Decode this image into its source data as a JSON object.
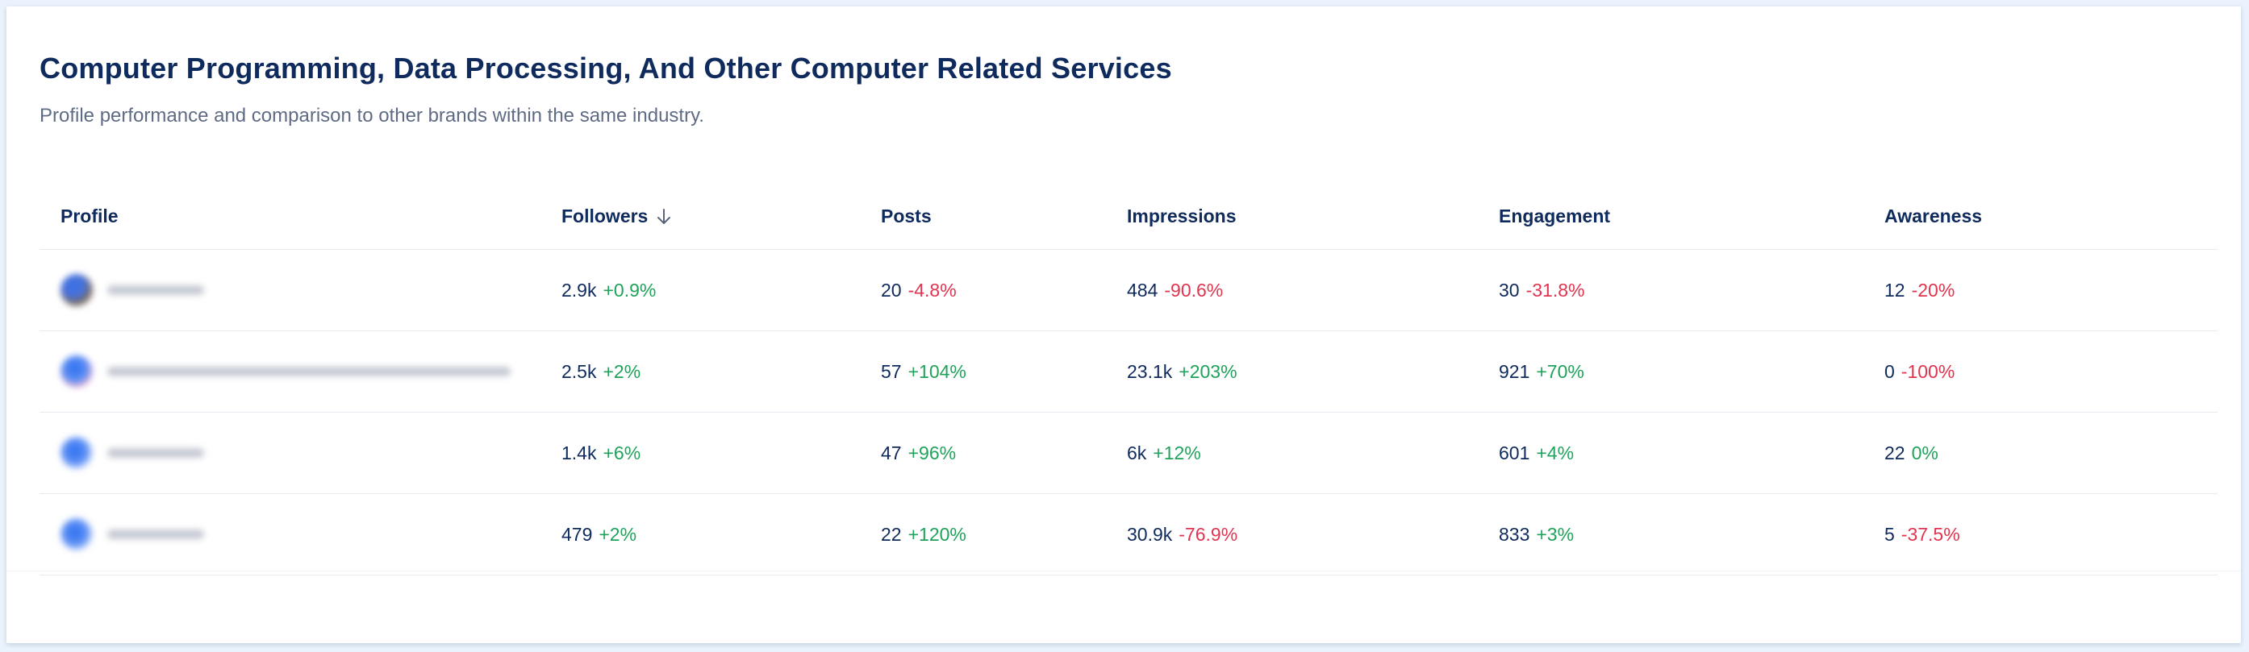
{
  "page": {
    "title": "Computer Programming, Data Processing, And Other Computer Related Services",
    "subtitle": "Profile performance and comparison to other brands within the same industry."
  },
  "colors": {
    "positive": "#1fa35b",
    "negative": "#e0344f",
    "heading": "#0f2a5c"
  },
  "table": {
    "columns": [
      "Profile",
      "Followers",
      "Posts",
      "Impressions",
      "Engagement",
      "Awareness"
    ],
    "sorted_column_icon": "arrow-down-icon",
    "rows": [
      {
        "followers": {
          "value": "2.9k",
          "change": "+0.9%"
        },
        "posts": {
          "value": "20",
          "change": "-4.8%"
        },
        "impressions": {
          "value": "484",
          "change": "-90.6%"
        },
        "engagement": {
          "value": "30",
          "change": "-31.8%"
        },
        "awareness": {
          "value": "12",
          "change": "-20%"
        }
      },
      {
        "followers": {
          "value": "2.5k",
          "change": "+2%"
        },
        "posts": {
          "value": "57",
          "change": "+104%"
        },
        "impressions": {
          "value": "23.1k",
          "change": "+203%"
        },
        "engagement": {
          "value": "921",
          "change": "+70%"
        },
        "awareness": {
          "value": "0",
          "change": "-100%"
        }
      },
      {
        "followers": {
          "value": "1.4k",
          "change": "+6%"
        },
        "posts": {
          "value": "47",
          "change": "+96%"
        },
        "impressions": {
          "value": "6k",
          "change": "+12%"
        },
        "engagement": {
          "value": "601",
          "change": "+4%"
        },
        "awareness": {
          "value": "22",
          "change": "0%"
        }
      },
      {
        "followers": {
          "value": "479",
          "change": "+2%"
        },
        "posts": {
          "value": "22",
          "change": "+120%"
        },
        "impressions": {
          "value": "30.9k",
          "change": "-76.9%"
        },
        "engagement": {
          "value": "833",
          "change": "+3%"
        },
        "awareness": {
          "value": "5",
          "change": "-37.5%"
        }
      }
    ]
  }
}
